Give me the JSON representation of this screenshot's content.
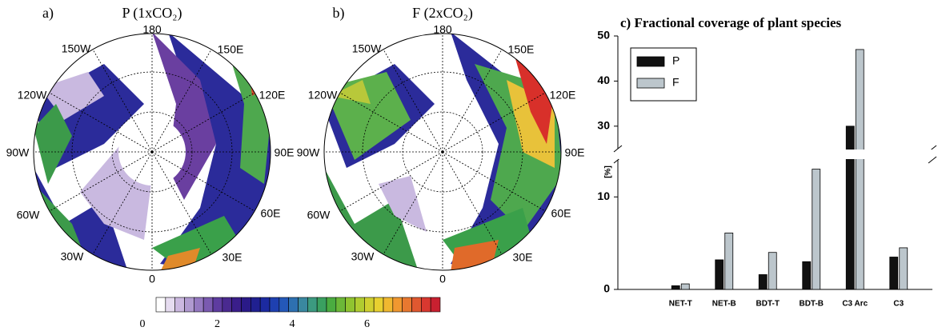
{
  "maps": [
    {
      "label": "a)",
      "title": "P (1xCO₂)"
    },
    {
      "label": "b)",
      "title": "F (2xCO₂)"
    }
  ],
  "longitudes": [
    "180",
    "150E",
    "120E",
    "90E",
    "60E",
    "30E",
    "0",
    "30W",
    "60W",
    "90W",
    "120W",
    "150W"
  ],
  "colorbar": {
    "ticks": [
      0,
      2,
      4,
      6
    ]
  },
  "chart_data": {
    "type": "bar",
    "title": "c) Fractional coverage of plant species",
    "y_label": "[%]",
    "categories": [
      "NET-T",
      "NET-B",
      "BDT-T",
      "BDT-B",
      "C3 Arc",
      "C3"
    ],
    "series": [
      {
        "name": "P",
        "color": "#111111",
        "values": [
          0.4,
          3.2,
          1.6,
          3.0,
          30,
          3.5
        ]
      },
      {
        "name": "F",
        "color": "#bcc6cc",
        "values": [
          0.6,
          6.1,
          4.0,
          13,
          47,
          4.5
        ]
      }
    ],
    "ylim": [
      0,
      50
    ],
    "ybreak": [
      14,
      25
    ],
    "yticks": [
      0,
      10,
      30,
      40,
      50
    ],
    "legend": "upper-left"
  }
}
